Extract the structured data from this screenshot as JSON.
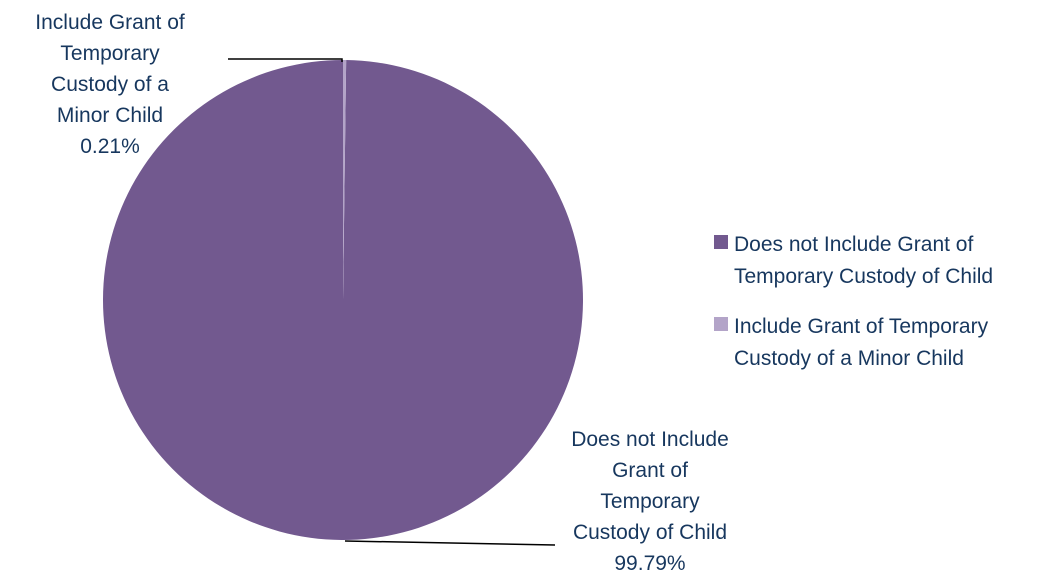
{
  "chart_data": {
    "type": "pie",
    "title": "",
    "categories": [
      "Does not Include Grant of Temporary Custody of Child",
      "Include Grant of Temporary Custody of a Minor Child"
    ],
    "values": [
      99.79,
      0.21
    ],
    "value_unit": "%",
    "colors": [
      "#72598f",
      "#b3a4c8"
    ],
    "legend_placement": "right",
    "data_labels": [
      {
        "lines": [
          "Does not Include",
          "Grant of",
          "Temporary",
          "Custody of Child",
          "99.79%"
        ]
      },
      {
        "lines": [
          "Include Grant of",
          "Temporary",
          "Custody of a",
          "Minor Child",
          "0.21%"
        ]
      }
    ],
    "legend": [
      {
        "lines": [
          "Does not Include Grant of",
          "Temporary Custody of Child"
        ]
      },
      {
        "lines": [
          "Include Grant of Temporary",
          "Custody of a Minor Child"
        ]
      }
    ]
  }
}
